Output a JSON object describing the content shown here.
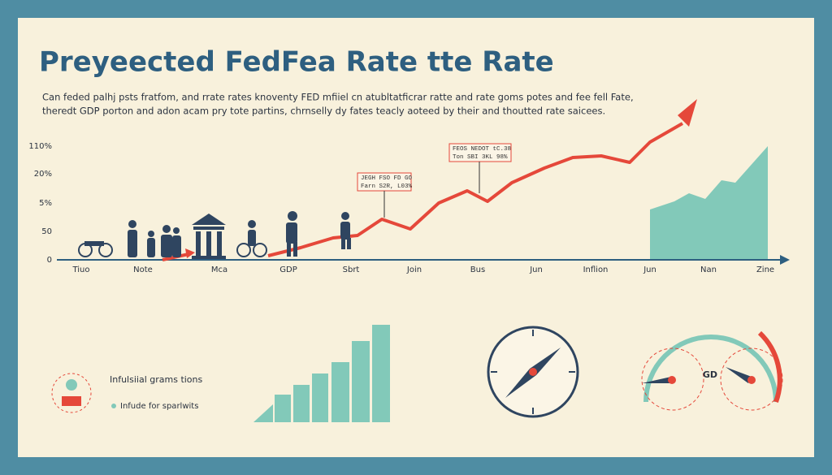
{
  "header": {
    "title": "Preyeected FedFea Rate tte Rate",
    "subtitle": [
      "Can feded palhj psts fratfom, and rrate rates knoventy FED mfiiel cn atubltatficrar ratte and rate goms potes and fee fell Fate,",
      "theredt GDP porton and adon acam pry tote partins, chrnselly dy fates teacly aoteed by their and thoutted rate saicees."
    ]
  },
  "axis": {
    "y_labels": [
      "110%",
      "20%",
      "5%",
      "50",
      "0"
    ],
    "x_labels": [
      "Tiuo",
      "Note",
      "Mca",
      "GDP",
      "Sbrt",
      "Join",
      "Bus",
      "Jun",
      "Inflion",
      "Jun",
      "Nan",
      "Zine"
    ]
  },
  "callouts": [
    [
      "JEGH FSO FD GO",
      "Farn S2R, L03%"
    ],
    [
      "FEOS NEDOT tC.38",
      "Ton SBI 3KL 98%"
    ]
  ],
  "legend": {
    "title": "Infulsiial grams tions",
    "item": "Infude for sparlwits"
  },
  "gauge_label": "GD"
}
